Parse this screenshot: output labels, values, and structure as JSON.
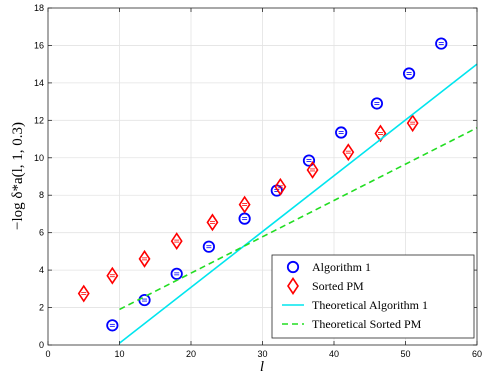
{
  "chart_data": {
    "type": "scatter",
    "title": "",
    "xlabel": "l",
    "ylabel": "−log δ*a(l, 1, 0.3)",
    "xlim": [
      0,
      60
    ],
    "ylim": [
      0,
      18
    ],
    "xticks": [
      0,
      10,
      20,
      30,
      40,
      50,
      60
    ],
    "yticks": [
      0,
      2,
      4,
      6,
      8,
      10,
      12,
      14,
      16,
      18
    ],
    "grid": true,
    "legend_position": "bottom-right",
    "series": [
      {
        "name": "Algorithm 1",
        "kind": "points",
        "marker": "circle",
        "color": "#0000ff",
        "x": [
          9,
          13.5,
          18,
          22.5,
          27.5,
          32,
          36.5,
          41,
          46,
          50.5,
          55
        ],
        "y": [
          1.05,
          2.4,
          3.8,
          5.25,
          6.75,
          8.25,
          9.85,
          11.35,
          12.9,
          14.5,
          16.1
        ]
      },
      {
        "name": "Sorted PM",
        "kind": "points",
        "marker": "diamond",
        "color": "#ff0000",
        "x": [
          5,
          9,
          13.5,
          18,
          23,
          27.5,
          32.5,
          37,
          42,
          46.5,
          51
        ],
        "y": [
          2.75,
          3.7,
          4.6,
          5.55,
          6.55,
          7.5,
          8.45,
          9.35,
          10.3,
          11.3,
          11.85
        ]
      },
      {
        "name": "Theoretical Algorithm 1",
        "kind": "line",
        "style": "solid",
        "color": "#00e5ee",
        "x": [
          10,
          60
        ],
        "y": [
          0.1,
          15
        ]
      },
      {
        "name": "Theoretical Sorted PM",
        "kind": "line",
        "style": "dashed",
        "color": "#22dd22",
        "x": [
          10,
          60
        ],
        "y": [
          1.9,
          11.6
        ]
      }
    ]
  }
}
